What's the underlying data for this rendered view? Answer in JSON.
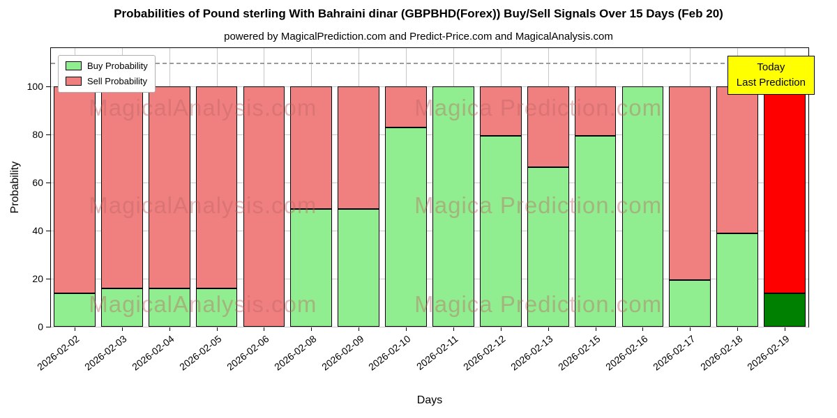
{
  "title": "Probabilities of Pound sterling With Bahraini dinar (GBPBHD(Forex)) Buy/Sell Signals Over 15 Days (Feb 20)",
  "subtitle": "powered by MagicalPrediction.com and Predict-Price.com and MagicalAnalysis.com",
  "annotation": {
    "line1": "Today",
    "line2": "Last Prediction",
    "bg_color": "#ffff00"
  },
  "legend": [
    {
      "label": "Buy Probability",
      "color": "#90ee90"
    },
    {
      "label": "Sell Probability",
      "color": "#f08080"
    }
  ],
  "watermarks": {
    "left": "MagicalAnalysis.com",
    "right": "Magica Prediction.com"
  },
  "chart_data": {
    "type": "bar",
    "stacked": true,
    "title": "Probabilities of Pound sterling With Bahraini dinar (GBPBHD(Forex)) Buy/Sell Signals Over 15 Days (Feb 20)",
    "xlabel": "Days",
    "ylabel": "Probability",
    "categories": [
      "2026-02-02",
      "2026-02-03",
      "2026-02-04",
      "2026-02-05",
      "2026-02-06",
      "2026-02-08",
      "2026-02-09",
      "2026-02-10",
      "2026-02-11",
      "2026-02-12",
      "2026-02-13",
      "2026-02-15",
      "2026-02-16",
      "2026-02-17",
      "2026-02-18",
      "2026-02-19"
    ],
    "series": [
      {
        "name": "Buy Probability",
        "color": "#90ee90",
        "values": [
          14,
          16,
          16,
          16,
          0,
          49,
          49,
          83,
          100,
          79.5,
          66.5,
          79.5,
          100,
          19.5,
          39,
          14
        ]
      },
      {
        "name": "Sell Probability",
        "color": "#f08080",
        "values": [
          86,
          84,
          84,
          84,
          100,
          51,
          51,
          17,
          0,
          20.5,
          33.5,
          20.5,
          0,
          80.5,
          61,
          86
        ]
      }
    ],
    "last_bar_colors": {
      "buy": "#008000",
      "sell": "#ff0000"
    },
    "yticks": [
      0,
      20,
      40,
      60,
      80,
      100
    ],
    "ylim": [
      0,
      116
    ],
    "dashed_line_y": 110,
    "grid": true,
    "legend_position": "upper left"
  }
}
